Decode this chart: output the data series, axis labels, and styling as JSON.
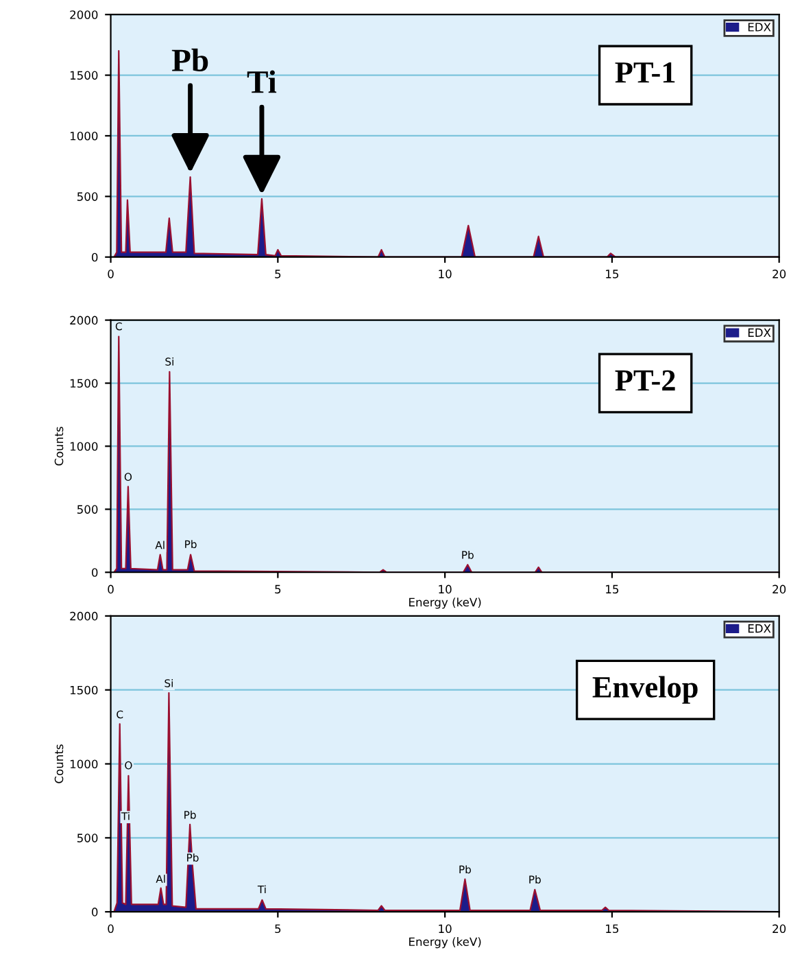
{
  "chart_data": [
    {
      "type": "area",
      "annotations": [
        "PT-1",
        {
          "text": "Pb",
          "x": 2.38,
          "y": 660
        },
        {
          "text": "Ti",
          "x": 4.52,
          "y": 481
        }
      ],
      "xlim": [
        0,
        20
      ],
      "xticks": [
        0,
        5,
        10,
        15,
        20
      ],
      "ylim": [
        0,
        2000
      ],
      "yticks": [
        0,
        500,
        1000,
        1500,
        2000
      ],
      "grid": "y",
      "legend": "top right",
      "series": [
        {
          "name": "EDX",
          "color": "#1c1c8a",
          "x": [
            0.1,
            0.18,
            0.24,
            0.32,
            0.45,
            0.5,
            0.58,
            1.65,
            1.75,
            1.85,
            2.25,
            2.38,
            2.5,
            4.4,
            4.52,
            4.64,
            4.92,
            5.0,
            5.1,
            8.0,
            8.1,
            8.2,
            10.5,
            10.7,
            10.9,
            12.65,
            12.8,
            12.95,
            14.85,
            14.96,
            15.1,
            20
          ],
          "values": [
            0,
            40,
            1700,
            40,
            40,
            470,
            40,
            40,
            320,
            40,
            40,
            660,
            30,
            20,
            480,
            20,
            10,
            60,
            10,
            0,
            60,
            0,
            0,
            260,
            0,
            0,
            170,
            0,
            0,
            30,
            0,
            0
          ]
        }
      ]
    },
    {
      "type": "area",
      "xlabel": "Energy (keV)",
      "ylabel": "Counts",
      "annotations": [
        "PT-2",
        {
          "text": "C",
          "x": 0.24,
          "y": 1873
        },
        {
          "text": "O",
          "x": 0.52,
          "y": 679
        },
        {
          "text": "Al",
          "x": 1.48,
          "y": 138
        },
        {
          "text": "Si",
          "x": 1.76,
          "y": 1593
        },
        {
          "text": "Pb",
          "x": 2.39,
          "y": 145
        },
        {
          "text": "Pb",
          "x": 10.68,
          "y": 60
        }
      ],
      "xlim": [
        0,
        20
      ],
      "xticks": [
        0,
        5,
        10,
        15,
        20
      ],
      "ylim": [
        0,
        2000
      ],
      "yticks": [
        0,
        500,
        1000,
        1500,
        2000
      ],
      "grid": "y",
      "legend": "top right",
      "series": [
        {
          "name": "EDX",
          "color": "#1c1c8a",
          "x": [
            0.1,
            0.18,
            0.24,
            0.32,
            0.45,
            0.52,
            0.6,
            1.4,
            1.48,
            1.56,
            1.68,
            1.76,
            1.85,
            2.3,
            2.39,
            2.5,
            8.05,
            8.15,
            8.25,
            10.55,
            10.68,
            10.8,
            12.7,
            12.8,
            12.9,
            20
          ],
          "values": [
            0,
            30,
            1870,
            30,
            30,
            680,
            30,
            20,
            140,
            20,
            20,
            1590,
            20,
            20,
            140,
            10,
            0,
            20,
            0,
            0,
            60,
            0,
            0,
            40,
            0,
            0
          ]
        }
      ]
    },
    {
      "type": "area",
      "xlabel": "Energy (keV)",
      "ylabel": "Counts",
      "annotations": [
        "Envelop",
        {
          "text": "C",
          "x": 0.27,
          "y": 1268
        },
        {
          "text": "Ti",
          "x": 0.45,
          "y": 580
        },
        {
          "text": "O",
          "x": 0.53,
          "y": 924
        },
        {
          "text": "Al",
          "x": 1.5,
          "y": 156
        },
        {
          "text": "Si",
          "x": 1.74,
          "y": 1479
        },
        {
          "text": "Pb",
          "x": 2.37,
          "y": 589
        },
        {
          "text": "Pb",
          "x": 2.45,
          "y": 300
        },
        {
          "text": "Ti",
          "x": 4.53,
          "y": 85
        },
        {
          "text": "Pb",
          "x": 10.6,
          "y": 220
        },
        {
          "text": "Pb",
          "x": 12.69,
          "y": 152
        }
      ],
      "xlim": [
        0,
        20
      ],
      "xticks": [
        0,
        5,
        10,
        15,
        20
      ],
      "ylim": [
        0,
        2000
      ],
      "yticks": [
        0,
        500,
        1000,
        1500,
        2000
      ],
      "grid": "y",
      "legend": "top right",
      "series": [
        {
          "name": "EDX",
          "color": "#1c1c8a",
          "x": [
            0.1,
            0.19,
            0.27,
            0.35,
            0.45,
            0.53,
            0.62,
            1.42,
            1.5,
            1.58,
            1.66,
            1.74,
            1.84,
            2.25,
            2.37,
            2.45,
            2.55,
            4.42,
            4.53,
            4.64,
            8.0,
            8.1,
            8.2,
            10.45,
            10.6,
            10.75,
            12.55,
            12.69,
            12.85,
            14.7,
            14.8,
            14.9,
            20
          ],
          "values": [
            0,
            60,
            1270,
            60,
            50,
            920,
            50,
            50,
            160,
            50,
            50,
            1480,
            40,
            30,
            590,
            300,
            20,
            20,
            80,
            20,
            10,
            40,
            10,
            10,
            220,
            10,
            10,
            150,
            10,
            10,
            30,
            10,
            0
          ]
        }
      ]
    }
  ]
}
